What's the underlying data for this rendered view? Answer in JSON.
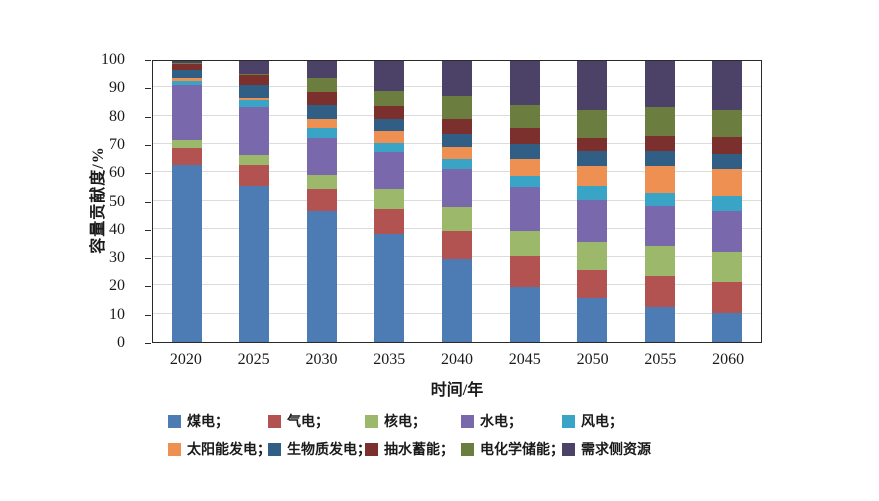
{
  "figure": {
    "background": "#ffffff",
    "axis_color": "#2a2a2a",
    "grid_color": "#dcdcdc"
  },
  "chart_data": {
    "type": "bar",
    "stacked": true,
    "title": "",
    "xlabel": "时间/年",
    "ylabel": "容量贡献度/%",
    "ylim": [
      0,
      100
    ],
    "yticks": [
      0,
      10,
      20,
      30,
      40,
      50,
      60,
      70,
      80,
      90,
      100
    ],
    "grid": "horizontal",
    "legend_position": "bottom",
    "categories": [
      "2020",
      "2025",
      "2030",
      "2035",
      "2040",
      "2045",
      "2050",
      "2055",
      "2060"
    ],
    "series": [
      {
        "key": "coal",
        "name": "煤电",
        "color": "#4D7BB3",
        "values": [
          63,
          55.5,
          46.5,
          38.5,
          29.5,
          19.5,
          15.5,
          12.5,
          10.5
        ]
      },
      {
        "key": "gas",
        "name": "气电",
        "color": "#B25251",
        "values": [
          6,
          7.5,
          8,
          9,
          10,
          11,
          10,
          11,
          11
        ]
      },
      {
        "key": "nuclear",
        "name": "核电",
        "color": "#9CB96B",
        "values": [
          3,
          3.5,
          5,
          7,
          8.5,
          9,
          10,
          10.5,
          10.5
        ]
      },
      {
        "key": "hydro",
        "name": "水电",
        "color": "#7968AC",
        "values": [
          19.5,
          17,
          13,
          13,
          13.5,
          15.5,
          15,
          14.5,
          14.5
        ]
      },
      {
        "key": "wind",
        "name": "风电",
        "color": "#3AA4C6",
        "values": [
          1.5,
          2.5,
          3.5,
          3.5,
          3.5,
          4,
          5,
          4.5,
          5.5
        ]
      },
      {
        "key": "solar",
        "name": "太阳能发电",
        "color": "#EE9052",
        "values": [
          1,
          1,
          3.5,
          4,
          4.5,
          6,
          7,
          9.5,
          9.5
        ]
      },
      {
        "key": "biomass",
        "name": "生物质发电",
        "color": "#305E85",
        "values": [
          3,
          4.5,
          5,
          4.5,
          4.5,
          5.5,
          5.5,
          5.5,
          5.5
        ]
      },
      {
        "key": "pumped-storage",
        "name": "抽水蓄能",
        "color": "#7B302E",
        "values": [
          2,
          3.5,
          4.5,
          4.5,
          5.5,
          5.5,
          4.5,
          5.5,
          6
        ]
      },
      {
        "key": "electrochemical-storage",
        "name": "电化学储能",
        "color": "#6B7D3F",
        "values": [
          0.5,
          0.5,
          5,
          5.5,
          8,
          8.5,
          10,
          10,
          9.5
        ]
      },
      {
        "key": "demand-side",
        "name": "需求侧资源",
        "color": "#4C4267",
        "values": [
          0.5,
          4.5,
          6,
          10.5,
          12.5,
          15.5,
          17.5,
          16.5,
          17.5
        ]
      }
    ]
  },
  "legend": {
    "items": [
      {
        "key": "coal",
        "label": "煤电；",
        "color": "#4D7BB3"
      },
      {
        "key": "gas",
        "label": "气电；",
        "color": "#B25251"
      },
      {
        "key": "nuclear",
        "label": "核电；",
        "color": "#9CB96B"
      },
      {
        "key": "hydro",
        "label": "水电；",
        "color": "#7968AC"
      },
      {
        "key": "wind",
        "label": "风电；",
        "color": "#3AA4C6"
      },
      {
        "key": "solar",
        "label": "太阳能发电；",
        "color": "#EE9052"
      },
      {
        "key": "biomass",
        "label": "生物质发电；",
        "color": "#305E85"
      },
      {
        "key": "pumped-storage",
        "label": "抽水蓄能；",
        "color": "#7B302E"
      },
      {
        "key": "electrochemical-storage",
        "label": "电化学储能；",
        "color": "#6B7D3F"
      },
      {
        "key": "demand-side",
        "label": "需求侧资源",
        "color": "#4C4267"
      }
    ]
  }
}
